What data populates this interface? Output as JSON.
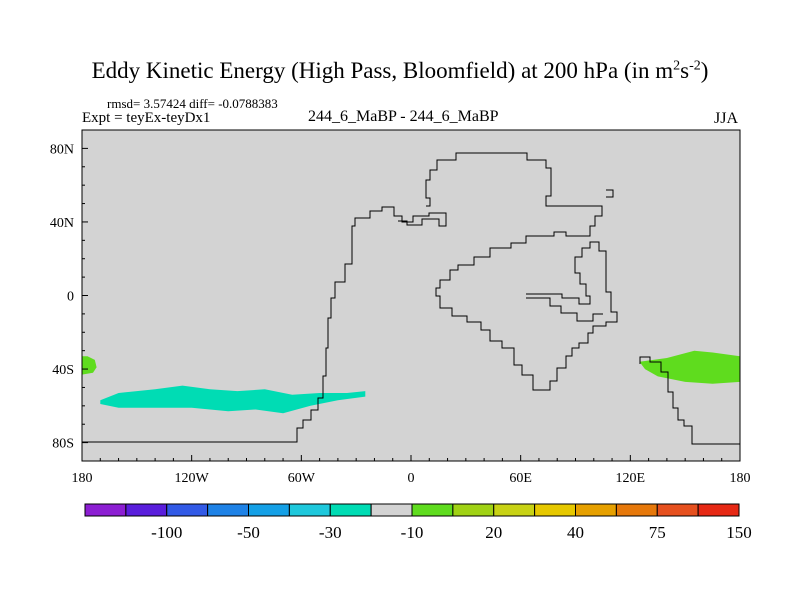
{
  "header": {
    "title_main": "Eddy Kinetic Energy (High Pass, Bloomfield) at 200 hPa (in m",
    "title_sup1": "2",
    "title_mid": "s",
    "title_sup2": "-2",
    "title_end": ")",
    "stats": "rmsd= 3.57424 diff= -0.0788383",
    "expt": "Expt = teyEx-teyDx1",
    "center_label": "244_6_MaBP - 244_6_MaBP",
    "season": "JJA"
  },
  "chart_data": {
    "type": "filled-contour-map",
    "title": "Eddy Kinetic Energy (High Pass, Bloomfield) at 200 hPa (in m^2 s^-2)",
    "subtitle": "244_6_MaBP - 244_6_MaBP",
    "season": "JJA",
    "rmsd": 3.57424,
    "diff": -0.0788383,
    "x_range": [
      -180,
      180
    ],
    "y_range": [
      -90,
      90
    ],
    "x_ticks": [
      {
        "value": -180,
        "label": "180"
      },
      {
        "value": -120,
        "label": "120W"
      },
      {
        "value": -60,
        "label": "60W"
      },
      {
        "value": 0,
        "label": "0"
      },
      {
        "value": 60,
        "label": "60E"
      },
      {
        "value": 120,
        "label": "120E"
      },
      {
        "value": 180,
        "label": "180"
      }
    ],
    "y_ticks": [
      {
        "value": 80,
        "label": "80N"
      },
      {
        "value": 40,
        "label": "40N"
      },
      {
        "value": 0,
        "label": "0"
      },
      {
        "value": -40,
        "label": "40S"
      },
      {
        "value": -80,
        "label": "80S"
      }
    ],
    "background_bin": "-10 to 20 (near zero)",
    "background_color": "#d3d3d3",
    "regions": [
      {
        "name": "south-pacific-negative",
        "bin": "-30 to -10",
        "color": "#00dcb4",
        "lon_lat": [
          [
            -170,
            -57
          ],
          [
            -160,
            -53
          ],
          [
            -140,
            -51
          ],
          [
            -125,
            -49
          ],
          [
            -110,
            -51
          ],
          [
            -95,
            -52
          ],
          [
            -80,
            -51
          ],
          [
            -65,
            -54
          ],
          [
            -50,
            -53
          ],
          [
            -35,
            -53
          ],
          [
            -25,
            -52
          ],
          [
            -25,
            -55
          ],
          [
            -40,
            -57
          ],
          [
            -55,
            -60
          ],
          [
            -70,
            -64
          ],
          [
            -85,
            -62
          ],
          [
            -100,
            -63
          ],
          [
            -120,
            -61
          ],
          [
            -140,
            -61
          ],
          [
            -160,
            -61
          ],
          [
            -170,
            -59
          ]
        ]
      },
      {
        "name": "west-dateline-positive",
        "bin": "20 to 30",
        "color": "#5fdc1e",
        "lon_lat": [
          [
            -180,
            -33
          ],
          [
            -177,
            -33
          ],
          [
            -173,
            -35
          ],
          [
            -172,
            -39
          ],
          [
            -174,
            -42
          ],
          [
            -180,
            -43
          ]
        ]
      },
      {
        "name": "south-west-pacific-positive",
        "bin": "20 to 30",
        "color": "#5fdc1e",
        "lon_lat": [
          [
            125,
            -36
          ],
          [
            140,
            -34
          ],
          [
            155,
            -30
          ],
          [
            165,
            -31
          ],
          [
            180,
            -33
          ],
          [
            180,
            -47
          ],
          [
            165,
            -48
          ],
          [
            150,
            -47
          ],
          [
            135,
            -44
          ],
          [
            128,
            -40
          ]
        ]
      }
    ],
    "colorbar": {
      "colors": [
        "#8c1ed2",
        "#5a1edc",
        "#325ae6",
        "#1e82e6",
        "#14a0e6",
        "#1ec8dc",
        "#00dcb4",
        "#d3d3d3",
        "#5fdc1e",
        "#a0d214",
        "#c8d214",
        "#e6c800",
        "#e6a000",
        "#e6780a",
        "#e6501e",
        "#e62814"
      ],
      "labels": [
        "-100",
        "-50",
        "-30",
        "-10",
        "20",
        "40",
        "75",
        "150"
      ]
    }
  }
}
